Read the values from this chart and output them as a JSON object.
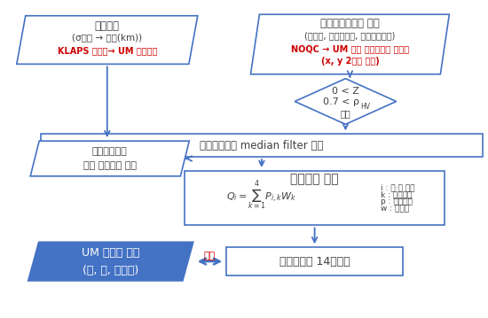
{
  "bg_color": "#ffffff",
  "arrow_color": "#4472c4",
  "box_border_color": "#4472c4",
  "box_fill": "#ffffff",
  "blue_fill": "#4472c4",
  "red_color": "#cc0000",
  "dark_text": "#404040",
  "box1_title": "온도자료",
  "box1_line2": "(σ레벨 → 고도(km))",
  "box1_line3": "KLAPS 분석장→ UM 온도자료",
  "box2_title": "이중편파레이더 변수",
  "box2_line2": "(반사도, 차등반사도, 교차상관계수)",
  "box2_line3": "NOQC → UM 기반 시뮬레이터 산출물",
  "box2_line4": "(x, y 2차원 격자)",
  "diamond_line1": "0 < Z",
  "diamond_line2": "0.7 < ρ",
  "diamond_sub": "HV",
  "diamond_line3": "제거",
  "box3_text": "이중편파변수 median filter 적용",
  "box4_title": "퍼지기법 적용",
  "box4_legend1": "i : 눈·비 유형",
  "box4_legend2": "k : 입력변수",
  "box4_legend3": "p : 소속정도",
  "box4_legend4": "w : 가중치",
  "box5_text1": "이중편파변수",
  "box5_text2": "범위 온도자료 내삽",
  "box6_text": "대기수상체 14종분류",
  "box7_line1": "UM 수상체 결과",
  "box7_line2": "(비, 눈, 싸락눈)",
  "compare_text": "비교"
}
